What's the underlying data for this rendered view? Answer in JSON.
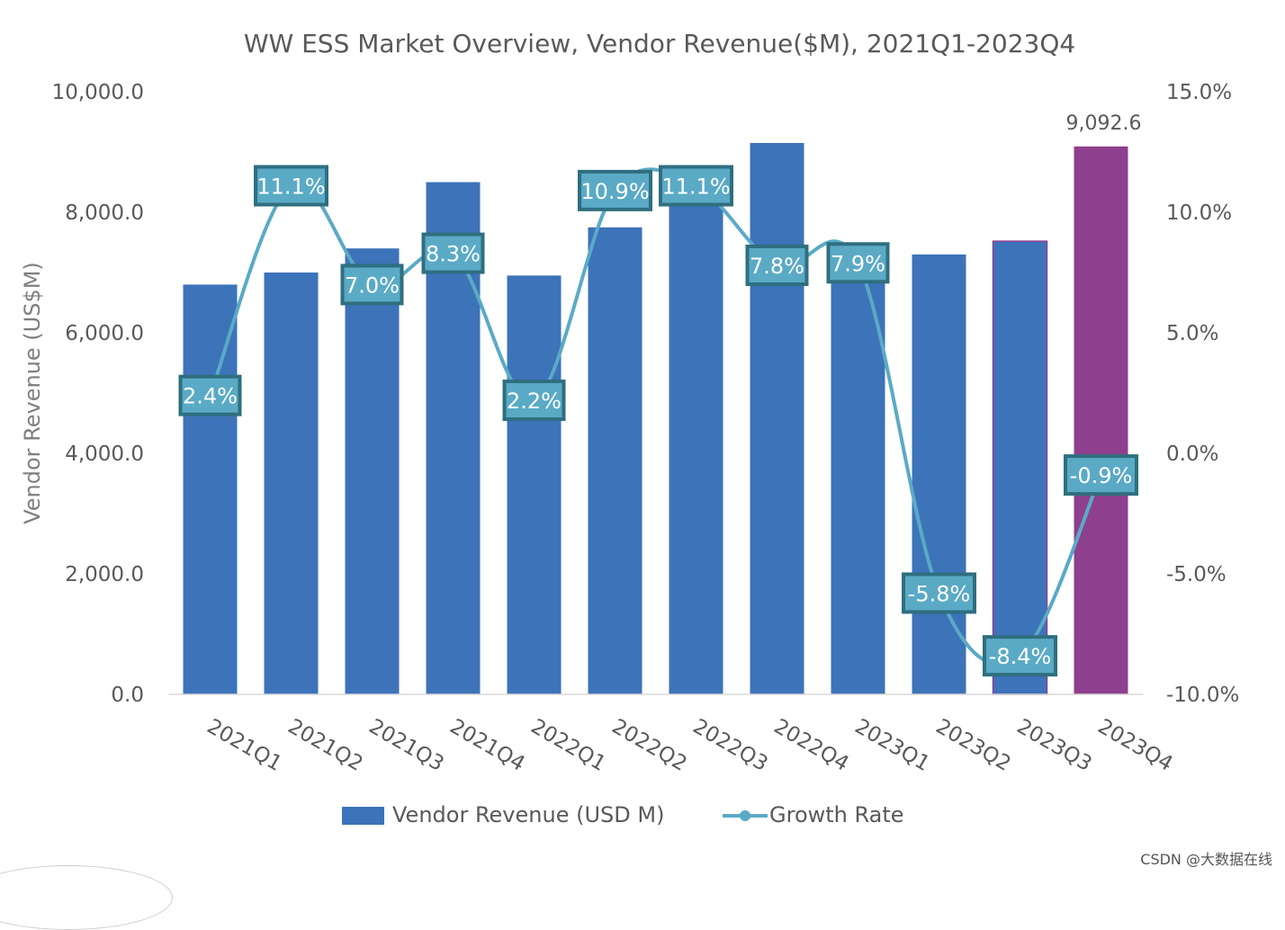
{
  "chart_data": {
    "type": "bar+line",
    "title": "WW ESS Market Overview, Vendor Revenue($M), 2021Q1-2023Q4",
    "ylabel": "Vendor Revenue (US$M)",
    "categories": [
      "2021Q1",
      "2021Q2",
      "2021Q3",
      "2021Q4",
      "2022Q1",
      "2022Q2",
      "2022Q3",
      "2022Q4",
      "2023Q1",
      "2023Q2",
      "2023Q3",
      "2023Q4"
    ],
    "ylim": [
      0,
      10000
    ],
    "y2lim": [
      -10,
      15
    ],
    "yticks": [
      "0.0",
      "2,000.0",
      "4,000.0",
      "6,000.0",
      "8,000.0",
      "10,000.0"
    ],
    "y2ticks": [
      "-10.0%",
      "-5.0%",
      "0.0%",
      "5.0%",
      "10.0%",
      "15.0%"
    ],
    "series": [
      {
        "name": "Vendor Revenue (USD M)",
        "type": "bar",
        "values": [
          6800,
          7000,
          7400,
          8500,
          6950,
          7750,
          8650,
          9150,
          6950,
          7300,
          7520,
          9092.6
        ],
        "colors": [
          "#3d73b8",
          "#3d73b8",
          "#3d73b8",
          "#3d73b8",
          "#3d73b8",
          "#3d73b8",
          "#3d73b8",
          "#3d73b8",
          "#3d73b8",
          "#3d73b8",
          "#3d73b8",
          "#8e3f8e"
        ],
        "labeled_value": "9,092.6"
      },
      {
        "name": "Growth Rate",
        "type": "line",
        "values": [
          2.4,
          11.1,
          7.0,
          8.3,
          2.2,
          10.9,
          11.1,
          7.8,
          7.9,
          -5.8,
          -8.4,
          -0.9
        ],
        "labels": [
          "2.4%",
          "11.1%",
          "7.0%",
          "8.3%",
          "2.2%",
          "10.9%",
          "11.1%",
          "7.8%",
          "7.9%",
          "-5.8%",
          "-8.4%",
          "-0.9%"
        ],
        "color": "#5aaac6"
      }
    ],
    "legend": [
      "Vendor Revenue (USD M)",
      "Growth Rate"
    ],
    "legend_position": "bottom"
  },
  "watermark": "CSDN @大数据在线"
}
